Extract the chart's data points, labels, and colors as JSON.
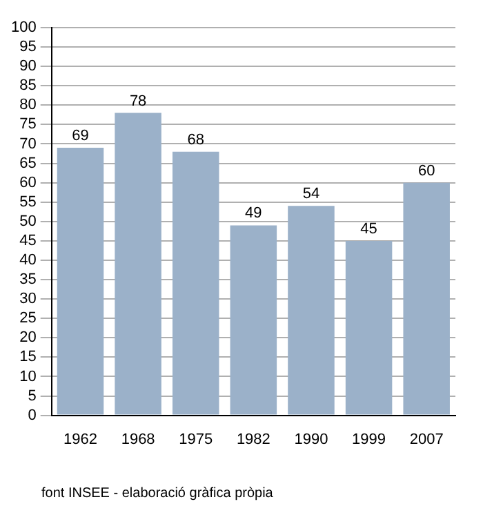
{
  "chart_data": {
    "type": "bar",
    "categories": [
      "1962",
      "1968",
      "1975",
      "1982",
      "1990",
      "1999",
      "2007"
    ],
    "values": [
      69,
      78,
      68,
      49,
      54,
      45,
      60
    ],
    "color": "#9bb1c9",
    "ylim": [
      0,
      100
    ],
    "yticks": [
      0,
      5,
      10,
      15,
      20,
      25,
      30,
      35,
      40,
      45,
      50,
      55,
      60,
      65,
      70,
      75,
      80,
      85,
      90,
      95,
      100
    ],
    "grid": "y",
    "data_labels": true,
    "legend": false,
    "annotations": [
      "font INSEE - elaboració gràfica pròpia"
    ]
  }
}
